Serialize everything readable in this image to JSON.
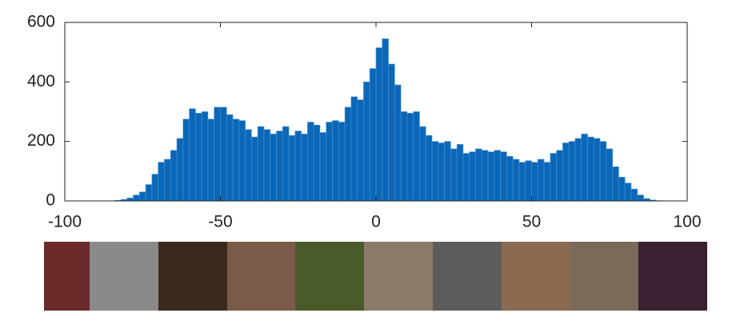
{
  "chart_data": {
    "type": "histogram",
    "color": "#0b67b8",
    "bins": [
      -100,
      -98,
      -96,
      -94,
      -92,
      -90,
      -88,
      -86,
      -84,
      -82,
      -80,
      -78,
      -76,
      -74,
      -72,
      -70,
      -68,
      -66,
      -64,
      -62,
      -60,
      -58,
      -56,
      -54,
      -52,
      -50,
      -48,
      -46,
      -44,
      -42,
      -40,
      -38,
      -36,
      -34,
      -32,
      -30,
      -28,
      -26,
      -24,
      -22,
      -20,
      -18,
      -16,
      -14,
      -12,
      -10,
      -8,
      -6,
      -4,
      -2,
      0,
      2,
      4,
      6,
      8,
      10,
      12,
      14,
      16,
      18,
      20,
      22,
      24,
      26,
      28,
      30,
      32,
      34,
      36,
      38,
      40,
      42,
      44,
      46,
      48,
      50,
      52,
      54,
      56,
      58,
      60,
      62,
      64,
      66,
      68,
      70,
      72,
      74,
      76,
      78,
      80,
      82,
      84,
      86,
      88,
      90,
      92,
      94,
      96,
      98,
      100
    ],
    "values": [
      0,
      0,
      0,
      0,
      0,
      0,
      0,
      0,
      2,
      5,
      10,
      20,
      30,
      55,
      90,
      130,
      140,
      170,
      210,
      275,
      310,
      295,
      300,
      275,
      315,
      315,
      290,
      275,
      270,
      240,
      215,
      250,
      240,
      225,
      235,
      250,
      220,
      235,
      225,
      265,
      255,
      230,
      265,
      270,
      265,
      315,
      350,
      340,
      400,
      445,
      515,
      545,
      460,
      390,
      300,
      295,
      300,
      250,
      220,
      200,
      195,
      200,
      175,
      190,
      160,
      165,
      175,
      170,
      165,
      170,
      165,
      150,
      140,
      130,
      135,
      130,
      140,
      130,
      160,
      170,
      195,
      200,
      210,
      225,
      215,
      210,
      200,
      175,
      115,
      80,
      60,
      40,
      20,
      8,
      3,
      1,
      0,
      0,
      0,
      0
    ],
    "xlim": [
      -100,
      100
    ],
    "xticks": [
      -100,
      -50,
      0,
      50,
      100
    ],
    "ylim": [
      0,
      600
    ],
    "yticks": [
      0,
      200,
      400,
      600
    ]
  }
}
